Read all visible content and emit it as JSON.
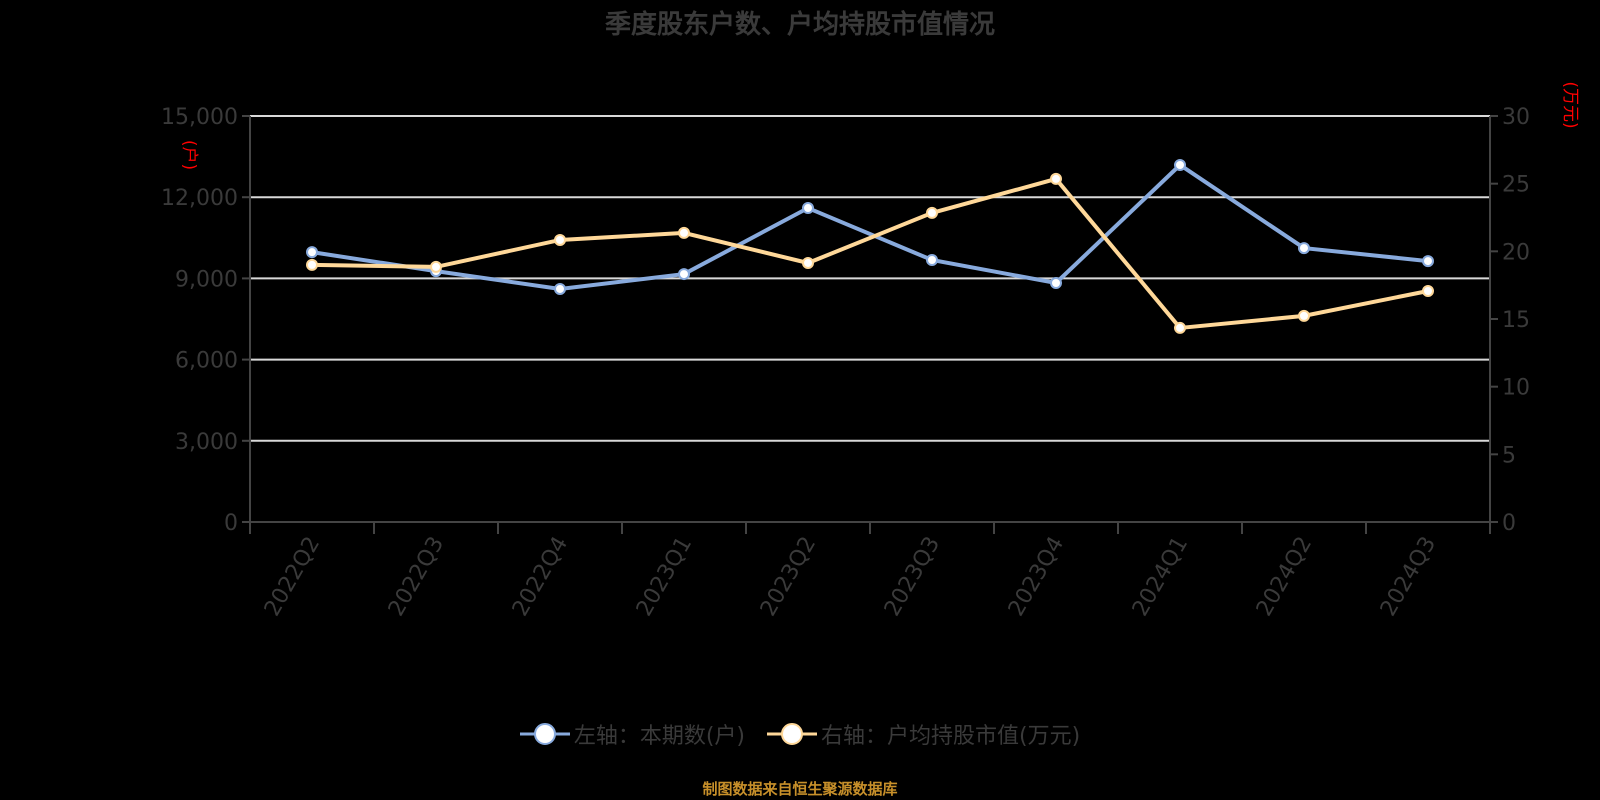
{
  "title": "季度股东户数、户均持股市值情况",
  "legend": [
    {
      "label": "左轴：本期数(户)",
      "color": "#88aadd"
    },
    {
      "label": "右轴：户均持股市值(万元)",
      "color": "#ffd899"
    }
  ],
  "footer": "制图数据来自恒生聚源数据库",
  "axes": {
    "left_unit": "(户)",
    "right_unit": "(万元)",
    "left_ticks": [
      "0",
      "3,000",
      "6,000",
      "9,000",
      "12,000",
      "15,000"
    ],
    "right_ticks": [
      "0",
      "5",
      "10",
      "15",
      "20",
      "25",
      "30"
    ]
  },
  "chart_data": {
    "type": "line",
    "title": "季度股东户数、户均持股市值情况",
    "categories": [
      "2022Q2",
      "2022Q3",
      "2022Q4",
      "2023Q1",
      "2023Q2",
      "2023Q3",
      "2023Q4",
      "2024Q1",
      "2024Q2",
      "2024Q3"
    ],
    "series": [
      {
        "name": "左轴：本期数(户)",
        "axis": "left",
        "color": "#88aadd",
        "values": [
          9970,
          9270,
          8610,
          9160,
          11600,
          9680,
          8830,
          13190,
          10120,
          9640
        ]
      },
      {
        "name": "右轴：户均持股市值(万元)",
        "axis": "right",
        "color": "#ffd899",
        "values": [
          19.0,
          18.85,
          20.84,
          21.36,
          19.14,
          22.84,
          25.35,
          14.34,
          15.23,
          17.07
        ]
      }
    ],
    "xlabel": "",
    "ylabel_left": "(户)",
    "ylabel_right": "(万元)",
    "ylim_left": [
      0,
      15000
    ],
    "ylim_right": [
      0,
      30
    ],
    "grid": true,
    "legend_position": "bottom"
  }
}
